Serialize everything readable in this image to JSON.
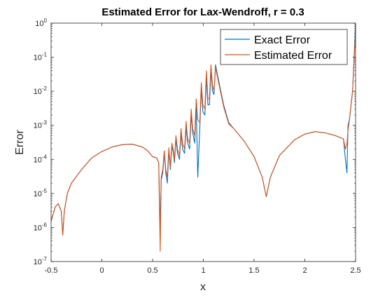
{
  "chart_data": {
    "type": "line",
    "title": "Estimated Error for Lax-Wendroff, r = 0.3",
    "xlabel": "x",
    "ylabel": "Error",
    "xlim": [
      -0.5,
      2.5
    ],
    "ylim": [
      1e-07,
      1
    ],
    "yscale": "log",
    "grid": false,
    "legend_position": "top-right",
    "x_ticks": [
      -0.5,
      0,
      0.5,
      1,
      1.5,
      2,
      2.5
    ],
    "x_tick_labels": [
      "-0.5",
      "0",
      "0.5",
      "1",
      "1.5",
      "2",
      "2.5"
    ],
    "y_ticks": [
      1e-07,
      1e-06,
      1e-05,
      0.0001,
      0.001,
      0.01,
      0.1,
      1
    ],
    "y_tick_labels": [
      {
        "base": "10",
        "exp": "-7"
      },
      {
        "base": "10",
        "exp": "-6"
      },
      {
        "base": "10",
        "exp": "-5"
      },
      {
        "base": "10",
        "exp": "-4"
      },
      {
        "base": "10",
        "exp": "-3"
      },
      {
        "base": "10",
        "exp": "-2"
      },
      {
        "base": "10",
        "exp": "-1"
      },
      {
        "base": "10",
        "exp": "0"
      }
    ],
    "series": [
      {
        "name": "Exact Error",
        "color": "#0072BD",
        "points": [
          [
            -0.5,
            1.5e-06
          ],
          [
            -0.46,
            4e-06
          ],
          [
            -0.43,
            5e-06
          ],
          [
            -0.4,
            3e-06
          ],
          [
            -0.385,
            6e-07
          ],
          [
            -0.37,
            3e-06
          ],
          [
            -0.34,
            1e-05
          ],
          [
            -0.3,
            2e-05
          ],
          [
            -0.2,
            5e-05
          ],
          [
            -0.1,
            0.00011
          ],
          [
            0,
            0.00017
          ],
          [
            0.1,
            0.00023
          ],
          [
            0.2,
            0.00027
          ],
          [
            0.3,
            0.00028
          ],
          [
            0.4,
            0.00023
          ],
          [
            0.45,
            0.00018
          ],
          [
            0.5,
            0.00012
          ],
          [
            0.54,
            0.00011
          ],
          [
            0.56,
            8e-05
          ],
          [
            0.575,
            1e-06
          ],
          [
            0.585,
            2.5e-05
          ],
          [
            0.6,
            4e-05
          ],
          [
            0.615,
            0.00015
          ],
          [
            0.63,
            4e-05
          ],
          [
            0.645,
            2e-05
          ],
          [
            0.66,
            0.00018
          ],
          [
            0.675,
            5e-05
          ],
          [
            0.69,
            0.00025
          ],
          [
            0.705,
            0.00015
          ],
          [
            0.715,
            8e-05
          ],
          [
            0.73,
            0.0004
          ],
          [
            0.745,
            0.00015
          ],
          [
            0.765,
            0.0001
          ],
          [
            0.78,
            0.0006
          ],
          [
            0.795,
            0.0002
          ],
          [
            0.815,
            0.00015
          ],
          [
            0.83,
            0.0009
          ],
          [
            0.845,
            0.0003
          ],
          [
            0.865,
            0.0002
          ],
          [
            0.88,
            0.002
          ],
          [
            0.895,
            0.0006
          ],
          [
            0.915,
            0.0003
          ],
          [
            0.93,
            0.004
          ],
          [
            0.945,
            3e-05
          ],
          [
            0.965,
            0.0008
          ],
          [
            0.98,
            0.012
          ],
          [
            0.995,
            0.0025
          ],
          [
            1.015,
            0.002
          ],
          [
            1.03,
            0.025
          ],
          [
            1.045,
            0.004
          ],
          [
            1.06,
            0.004
          ],
          [
            1.075,
            0.04
          ],
          [
            1.09,
            0.01
          ],
          [
            1.105,
            0.008
          ],
          [
            1.12,
            0.06
          ],
          [
            1.14,
            0.03
          ],
          [
            1.16,
            0.015
          ],
          [
            1.2,
            0.004
          ],
          [
            1.25,
            0.0012
          ],
          [
            1.3,
            0.0008
          ],
          [
            1.4,
            0.00035
          ],
          [
            1.5,
            0.00012
          ],
          [
            1.58,
            3e-05
          ],
          [
            1.62,
            8e-06
          ],
          [
            1.66,
            3e-05
          ],
          [
            1.75,
            0.00013
          ],
          [
            1.9,
            0.00038
          ],
          [
            2.0,
            0.00055
          ],
          [
            2.1,
            0.00065
          ],
          [
            2.2,
            0.0006
          ],
          [
            2.3,
            0.0005
          ],
          [
            2.38,
            0.0004
          ],
          [
            2.4,
            0.0001
          ],
          [
            2.415,
            4e-05
          ],
          [
            2.425,
            0.001
          ],
          [
            2.44,
            0.0015
          ],
          [
            2.47,
            0.01
          ],
          [
            2.5,
            1
          ]
        ]
      },
      {
        "name": "Estimated Error",
        "color": "#D95319",
        "points": [
          [
            -0.5,
            1.5e-06
          ],
          [
            -0.46,
            4e-06
          ],
          [
            -0.43,
            5e-06
          ],
          [
            -0.4,
            3e-06
          ],
          [
            -0.385,
            6e-07
          ],
          [
            -0.37,
            3e-06
          ],
          [
            -0.34,
            1e-05
          ],
          [
            -0.3,
            2e-05
          ],
          [
            -0.2,
            5e-05
          ],
          [
            -0.1,
            0.00011
          ],
          [
            0,
            0.00017
          ],
          [
            0.1,
            0.00023
          ],
          [
            0.2,
            0.00027
          ],
          [
            0.3,
            0.00028
          ],
          [
            0.4,
            0.00023
          ],
          [
            0.45,
            0.00018
          ],
          [
            0.5,
            0.00012
          ],
          [
            0.54,
            0.00011
          ],
          [
            0.56,
            8e-05
          ],
          [
            0.575,
            2e-07
          ],
          [
            0.585,
            3e-05
          ],
          [
            0.6,
            5e-05
          ],
          [
            0.615,
            0.00018
          ],
          [
            0.63,
            5e-05
          ],
          [
            0.645,
            3e-05
          ],
          [
            0.66,
            0.00022
          ],
          [
            0.675,
            6e-05
          ],
          [
            0.69,
            0.0003
          ],
          [
            0.705,
            0.00018
          ],
          [
            0.715,
            0.0001
          ],
          [
            0.73,
            0.0005
          ],
          [
            0.745,
            0.0002
          ],
          [
            0.765,
            0.00013
          ],
          [
            0.78,
            0.0008
          ],
          [
            0.795,
            0.0003
          ],
          [
            0.815,
            0.0002
          ],
          [
            0.83,
            0.0013
          ],
          [
            0.845,
            0.0004
          ],
          [
            0.865,
            0.0003
          ],
          [
            0.88,
            0.003
          ],
          [
            0.895,
            0.0008
          ],
          [
            0.915,
            0.0005
          ],
          [
            0.93,
            0.006
          ],
          [
            0.945,
            0.0015
          ],
          [
            0.965,
            0.0012
          ],
          [
            0.98,
            0.018
          ],
          [
            0.995,
            0.004
          ],
          [
            1.015,
            0.003
          ],
          [
            1.03,
            0.04
          ],
          [
            1.045,
            0.006
          ],
          [
            1.06,
            0.006
          ],
          [
            1.075,
            0.06
          ],
          [
            1.09,
            0.015
          ],
          [
            1.105,
            0.01
          ],
          [
            1.12,
            0.05
          ],
          [
            1.14,
            0.025
          ],
          [
            1.16,
            0.013
          ],
          [
            1.2,
            0.0035
          ],
          [
            1.25,
            0.0011
          ],
          [
            1.3,
            0.0008
          ],
          [
            1.4,
            0.00035
          ],
          [
            1.5,
            0.00012
          ],
          [
            1.58,
            3e-05
          ],
          [
            1.62,
            8e-06
          ],
          [
            1.66,
            3e-05
          ],
          [
            1.75,
            0.00013
          ],
          [
            1.9,
            0.00038
          ],
          [
            2.0,
            0.00055
          ],
          [
            2.1,
            0.00065
          ],
          [
            2.2,
            0.0006
          ],
          [
            2.3,
            0.0005
          ],
          [
            2.38,
            0.0004
          ],
          [
            2.4,
            0.0002
          ],
          [
            2.415,
            0.0003
          ],
          [
            2.425,
            0.0007
          ],
          [
            2.44,
            0.0015
          ],
          [
            2.47,
            0.01
          ],
          [
            2.5,
            0.6
          ]
        ]
      }
    ]
  }
}
